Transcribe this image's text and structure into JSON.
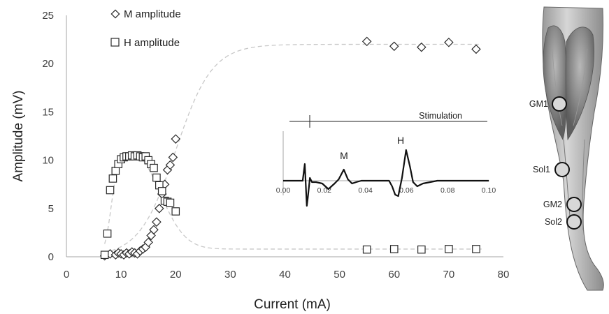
{
  "chart_data": [
    {
      "type": "scatter",
      "xlabel": "Current (mA)",
      "ylabel": "Amplitude (mV)",
      "xlim": [
        0,
        80
      ],
      "ylim": [
        0,
        25
      ],
      "xticks": [
        "0",
        "10",
        "20",
        "30",
        "40",
        "50",
        "60",
        "70",
        "80"
      ],
      "yticks": [
        "0",
        "5",
        "10",
        "15",
        "20",
        "25"
      ],
      "grid": false,
      "legend": "top-left",
      "series": [
        {
          "name": "M amplitude",
          "marker": "diamond",
          "x": [
            7,
            8,
            9,
            9.5,
            10,
            10.5,
            11,
            11.5,
            12,
            12.5,
            13,
            13.5,
            14,
            14.5,
            15,
            15.5,
            16,
            16.5,
            17,
            17.5,
            18,
            18.5,
            19,
            19.5,
            20,
            55,
            60,
            65,
            70,
            75
          ],
          "y": [
            0.1,
            0.3,
            0.2,
            0.4,
            0.3,
            0.2,
            0.4,
            0.3,
            0.5,
            0.4,
            0.3,
            0.6,
            0.8,
            1.0,
            1.5,
            2.2,
            2.8,
            3.6,
            5.0,
            6.5,
            7.5,
            9.0,
            9.5,
            10.3,
            12.2,
            22.3,
            21.8,
            21.7,
            22.2,
            21.5
          ]
        },
        {
          "name": "H amplitude",
          "marker": "square",
          "x": [
            7,
            7.5,
            8,
            8.5,
            9,
            9.5,
            10,
            10.5,
            11,
            11.5,
            12,
            12.5,
            13,
            13.5,
            14,
            14.5,
            15,
            15.5,
            16,
            16.5,
            17,
            17.5,
            18,
            18.5,
            19,
            20,
            55,
            60,
            65,
            70,
            75
          ],
          "y": [
            0.2,
            2.4,
            6.9,
            8.1,
            8.9,
            9.6,
            10.1,
            10.3,
            10.4,
            10.4,
            10.5,
            10.4,
            10.5,
            10.4,
            10.3,
            10.4,
            10.0,
            9.6,
            9.2,
            8.2,
            7.4,
            6.8,
            5.8,
            5.7,
            5.6,
            4.7,
            0.75,
            0.8,
            0.75,
            0.8,
            0.8
          ]
        }
      ],
      "trend_lines": {
        "style": "dashed",
        "color": "#c8c8c8",
        "M": {
          "shape": "sigmoid",
          "plateau": 22,
          "midpoint": 20,
          "slope": 0.3
        },
        "H": {
          "shape": "rise-fall",
          "peak": 10.5,
          "peak_at": 12.5,
          "tail": 0.8
        }
      }
    },
    {
      "type": "line",
      "xlim": [
        0,
        0.1
      ],
      "xticks": [
        "0.00",
        "0.02",
        "0.04",
        "0.06",
        "0.08",
        "0.10"
      ],
      "annotations": [
        "M",
        "H"
      ],
      "stimulation_label": "Stimulation",
      "trace": {
        "x": [
          0,
          0.005,
          0.0095,
          0.0105,
          0.0115,
          0.012,
          0.013,
          0.014,
          0.016,
          0.019,
          0.022,
          0.025,
          0.027,
          0.0295,
          0.0315,
          0.0335,
          0.0355,
          0.038,
          0.045,
          0.0515,
          0.053,
          0.0545,
          0.056,
          0.0578,
          0.0598,
          0.0617,
          0.0632,
          0.0652,
          0.068,
          0.075,
          0.1
        ],
        "y": [
          0,
          0,
          0,
          0.6,
          -0.9,
          -0.6,
          0.1,
          -0.05,
          -0.05,
          -0.1,
          -0.3,
          -0.1,
          0.05,
          0.4,
          0.05,
          -0.1,
          -0.05,
          0,
          0,
          0,
          -0.2,
          -0.5,
          -0.55,
          0.1,
          1.1,
          0.5,
          -0.05,
          -0.2,
          -0.1,
          0,
          0
        ]
      }
    }
  ],
  "colors": {
    "marker_stroke": "#2a2a2a",
    "trend": "#c8c8c8",
    "axis": "#a6a6a6",
    "trace": "#111111"
  },
  "figure": {
    "electrode_sites": [
      "GM1",
      "Sol1",
      "GM2",
      "Sol2"
    ],
    "image": "calf-muscle-illustration"
  }
}
